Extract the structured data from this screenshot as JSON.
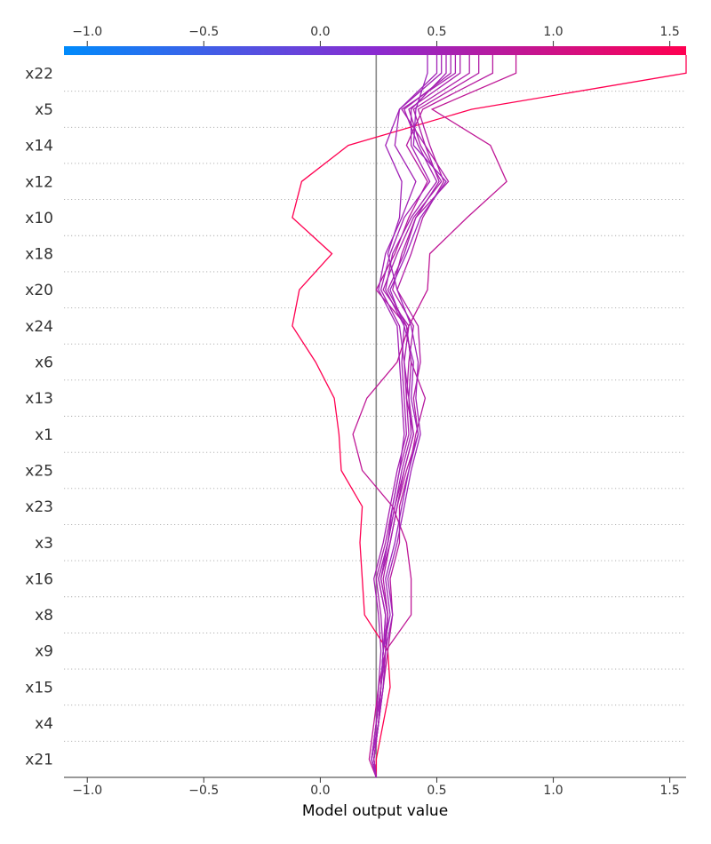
{
  "chart_data": {
    "type": "line",
    "xlabel": "Model output value",
    "xlim": [
      -1.1,
      1.57
    ],
    "x_ticks": [
      -1.0,
      -0.5,
      0.0,
      0.5,
      1.0,
      1.5
    ],
    "x_tick_labels": [
      "−1.0",
      "−0.5",
      "0.0",
      "0.5",
      "1.0",
      "1.5"
    ],
    "base_value": 0.24,
    "features": [
      "x22",
      "x5",
      "x14",
      "x12",
      "x10",
      "x18",
      "x20",
      "x24",
      "x6",
      "x13",
      "x1",
      "x25",
      "x23",
      "x3",
      "x16",
      "x8",
      "x9",
      "x15",
      "x4",
      "x21"
    ],
    "colorbar": {
      "min": -1.1,
      "max": 1.57,
      "low_color": "#008bfb",
      "mid_color": "#8a2bd0",
      "high_color": "#ff0051"
    },
    "grid": "dotted horizontal",
    "series": [
      {
        "values": [
          1.57,
          0.65,
          0.12,
          -0.08,
          -0.12,
          0.05,
          -0.09,
          -0.12,
          -0.02,
          0.06,
          0.08,
          0.09,
          0.18,
          0.17,
          0.18,
          0.19,
          0.29,
          0.3,
          0.27,
          0.24
        ]
      },
      {
        "values": [
          0.84,
          0.48,
          0.73,
          0.8,
          0.63,
          0.47,
          0.46,
          0.38,
          0.33,
          0.2,
          0.14,
          0.18,
          0.31,
          0.37,
          0.39,
          0.39,
          0.28,
          0.25,
          0.23,
          0.21
        ]
      },
      {
        "values": [
          0.74,
          0.44,
          0.37,
          0.46,
          0.38,
          0.32,
          0.24,
          0.37,
          0.39,
          0.45,
          0.41,
          0.38,
          0.34,
          0.34,
          0.3,
          0.31,
          0.29,
          0.27,
          0.25,
          0.22
        ]
      },
      {
        "values": [
          0.68,
          0.42,
          0.47,
          0.53,
          0.44,
          0.39,
          0.33,
          0.42,
          0.43,
          0.4,
          0.42,
          0.37,
          0.33,
          0.3,
          0.27,
          0.29,
          0.28,
          0.27,
          0.25,
          0.23
        ]
      },
      {
        "values": [
          0.64,
          0.4,
          0.45,
          0.55,
          0.41,
          0.35,
          0.31,
          0.4,
          0.38,
          0.37,
          0.4,
          0.36,
          0.32,
          0.29,
          0.25,
          0.28,
          0.27,
          0.26,
          0.25,
          0.23
        ]
      },
      {
        "values": [
          0.6,
          0.38,
          0.43,
          0.52,
          0.4,
          0.33,
          0.27,
          0.38,
          0.36,
          0.37,
          0.38,
          0.34,
          0.31,
          0.28,
          0.24,
          0.26,
          0.27,
          0.26,
          0.24,
          0.22
        ]
      },
      {
        "values": [
          0.56,
          0.36,
          0.42,
          0.5,
          0.39,
          0.31,
          0.28,
          0.36,
          0.35,
          0.36,
          0.37,
          0.33,
          0.3,
          0.27,
          0.23,
          0.25,
          0.26,
          0.25,
          0.24,
          0.22
        ]
      },
      {
        "values": [
          0.54,
          0.39,
          0.39,
          0.47,
          0.36,
          0.3,
          0.26,
          0.34,
          0.36,
          0.38,
          0.39,
          0.35,
          0.32,
          0.29,
          0.25,
          0.28,
          0.27,
          0.26,
          0.24,
          0.22
        ]
      },
      {
        "values": [
          0.52,
          0.34,
          0.32,
          0.41,
          0.35,
          0.28,
          0.25,
          0.33,
          0.34,
          0.35,
          0.36,
          0.34,
          0.31,
          0.29,
          0.26,
          0.29,
          0.27,
          0.26,
          0.25,
          0.23
        ]
      },
      {
        "values": [
          0.5,
          0.34,
          0.28,
          0.35,
          0.34,
          0.29,
          0.33,
          0.39,
          0.42,
          0.41,
          0.43,
          0.39,
          0.36,
          0.33,
          0.29,
          0.31,
          0.28,
          0.27,
          0.25,
          0.23
        ]
      },
      {
        "values": [
          0.46,
          0.41,
          0.4,
          0.54,
          0.43,
          0.37,
          0.3,
          0.36,
          0.4,
          0.39,
          0.42,
          0.38,
          0.35,
          0.32,
          0.28,
          0.3,
          0.27,
          0.26,
          0.25,
          0.22
        ]
      },
      {
        "values": [
          0.58,
          0.35,
          0.45,
          0.51,
          0.41,
          0.36,
          0.29,
          0.37,
          0.39,
          0.38,
          0.4,
          0.36,
          0.33,
          0.3,
          0.26,
          0.29,
          0.28,
          0.26,
          0.25,
          0.23
        ]
      }
    ]
  }
}
